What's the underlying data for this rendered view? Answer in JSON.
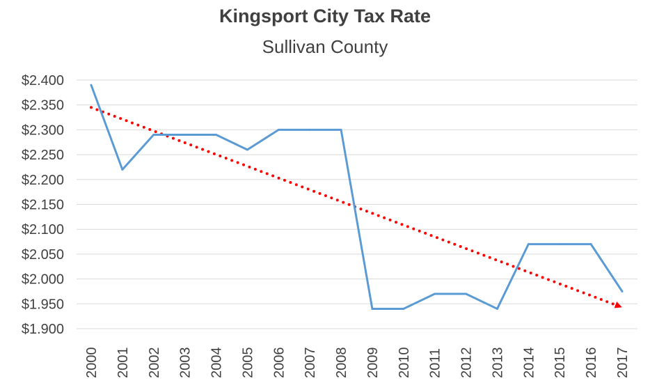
{
  "chart_data": {
    "type": "line",
    "title": "Kingsport City Tax Rate",
    "subtitle": "Sullivan County",
    "xlabel": "",
    "ylabel": "",
    "ylim": [
      1.9,
      2.4
    ],
    "y_ticks": [
      "$2.400",
      "$2.350",
      "$2.300",
      "$2.250",
      "$2.200",
      "$2.150",
      "$2.100",
      "$2.050",
      "$2.000",
      "$1.950",
      "$1.900"
    ],
    "y_tick_values": [
      2.4,
      2.35,
      2.3,
      2.25,
      2.2,
      2.15,
      2.1,
      2.05,
      2.0,
      1.95,
      1.9
    ],
    "categories": [
      "2000",
      "2001",
      "2002",
      "2003",
      "2004",
      "2005",
      "2006",
      "2007",
      "2008",
      "2009",
      "2010",
      "2011",
      "2012",
      "2013",
      "2014",
      "2015",
      "2016",
      "2017"
    ],
    "series": [
      {
        "values": [
          2.39,
          2.22,
          2.29,
          2.29,
          2.29,
          2.26,
          2.3,
          2.3,
          2.3,
          1.94,
          1.94,
          1.97,
          1.97,
          1.94,
          2.07,
          2.07,
          2.07,
          1.975
        ],
        "color": "#5B9BD5"
      }
    ],
    "trendline": {
      "style": "dotted-arrow",
      "color": "#FF0000",
      "start": {
        "x": "2000",
        "y": 2.345
      },
      "end": {
        "x": "2017",
        "y": 1.945
      }
    },
    "grid": true,
    "legend": "none"
  }
}
